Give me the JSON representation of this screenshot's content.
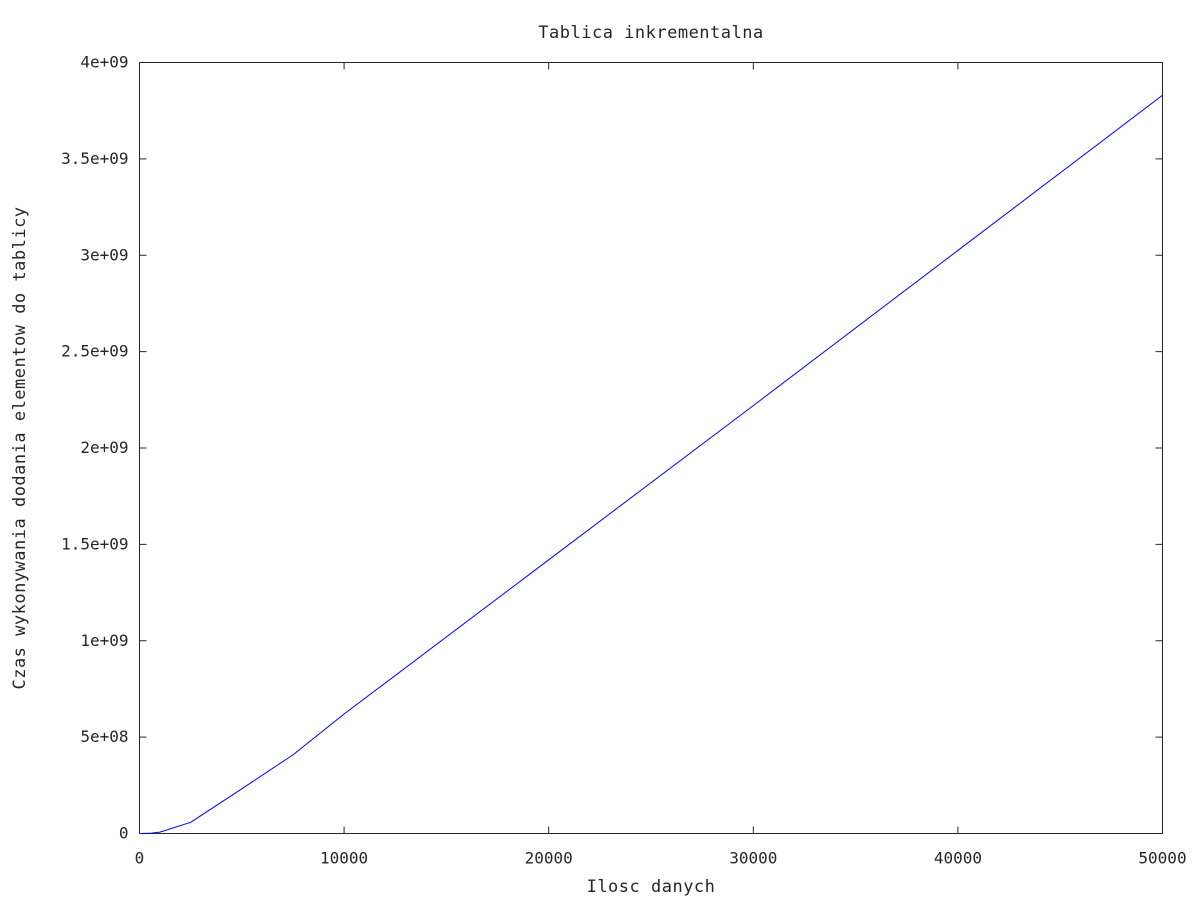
{
  "chart_data": {
    "type": "line",
    "title": "Tablica inkrementalna",
    "xlabel": "Ilosc danych",
    "ylabel": "Czas wykonywania dodania elementow do tablicy",
    "xlim": [
      0,
      50000
    ],
    "ylim": [
      0,
      4000000000
    ],
    "x_ticks": [
      0,
      10000,
      20000,
      30000,
      40000,
      50000
    ],
    "x_tick_labels": [
      "0",
      "10000",
      "20000",
      "30000",
      "40000",
      "50000"
    ],
    "y_ticks": [
      0,
      500000000,
      1000000000,
      1500000000,
      2000000000,
      2500000000,
      3000000000,
      3500000000,
      4000000000
    ],
    "y_tick_labels": [
      "0",
      "5e+08",
      "1e+09",
      "1.5e+09",
      "2e+09",
      "2.5e+09",
      "3e+09",
      "3.5e+09",
      "4e+09"
    ],
    "grid": false,
    "legend": "none",
    "series": [
      {
        "color": "#0000ff",
        "x": [
          0,
          500,
          1000,
          2500,
          5000,
          7500,
          10000,
          20000,
          30000,
          40000,
          50000
        ],
        "y": [
          0,
          1000000,
          7000000,
          58000000,
          232000000,
          408000000,
          620000000,
          1420000000,
          2220000000,
          3025000000,
          3830000000
        ]
      }
    ]
  }
}
